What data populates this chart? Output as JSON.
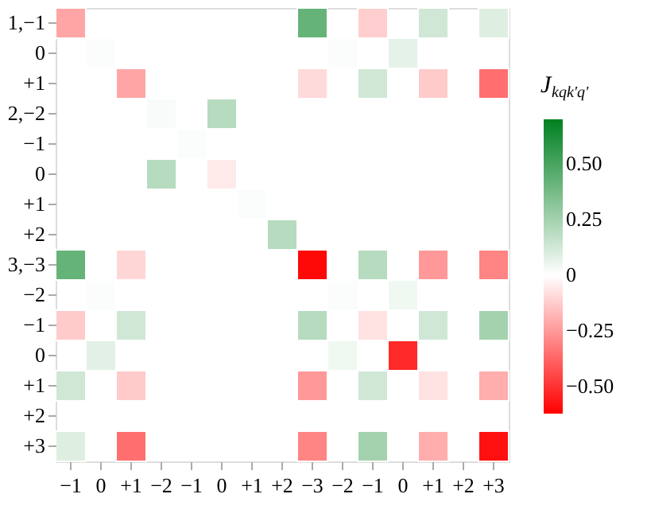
{
  "chart_data": {
    "type": "heatmap",
    "categories": [
      "−1",
      "0",
      "+1",
      "−2",
      "−1",
      "0",
      "+1",
      "+2",
      "−3",
      "−2",
      "−1",
      "0",
      "+1",
      "+2",
      "+3"
    ],
    "y_categories": [
      "1,−1",
      "0",
      "+1",
      "2,−2",
      "−1",
      "0",
      "+1",
      "+2",
      "3,−3",
      "−2",
      "−1",
      "0",
      "+1",
      "+2",
      "+3"
    ],
    "cells": [
      [
        -0.22,
        null,
        null,
        null,
        null,
        null,
        null,
        null,
        0.42,
        null,
        -0.12,
        null,
        0.13,
        null,
        0.09
      ],
      [
        null,
        0.01,
        null,
        null,
        null,
        null,
        null,
        null,
        null,
        0.01,
        null,
        0.07,
        null,
        null,
        null
      ],
      [
        null,
        null,
        -0.22,
        null,
        null,
        null,
        null,
        null,
        -0.09,
        null,
        0.13,
        null,
        -0.13,
        null,
        -0.35
      ],
      [
        null,
        null,
        null,
        0.02,
        null,
        0.2,
        null,
        null,
        null,
        null,
        null,
        null,
        null,
        null,
        null
      ],
      [
        null,
        null,
        null,
        null,
        0.01,
        null,
        null,
        null,
        null,
        null,
        null,
        null,
        null,
        null,
        null
      ],
      [
        null,
        null,
        null,
        0.2,
        null,
        -0.05,
        null,
        null,
        null,
        null,
        null,
        null,
        null,
        null,
        null
      ],
      [
        null,
        null,
        null,
        null,
        null,
        null,
        0.01,
        null,
        null,
        null,
        null,
        null,
        null,
        null,
        null
      ],
      [
        null,
        null,
        null,
        null,
        null,
        null,
        null,
        0.2,
        null,
        null,
        null,
        null,
        null,
        null,
        null
      ],
      [
        0.42,
        null,
        -0.1,
        null,
        null,
        null,
        null,
        null,
        -0.6,
        null,
        0.2,
        null,
        -0.25,
        null,
        -0.3
      ],
      [
        null,
        0.01,
        null,
        null,
        null,
        null,
        null,
        null,
        null,
        0.01,
        null,
        0.04,
        null,
        null,
        null
      ],
      [
        -0.13,
        null,
        0.13,
        null,
        null,
        null,
        null,
        null,
        0.2,
        null,
        -0.07,
        null,
        0.13,
        null,
        0.25
      ],
      [
        null,
        0.08,
        null,
        null,
        null,
        null,
        null,
        null,
        null,
        0.04,
        null,
        -0.52,
        null,
        null,
        null
      ],
      [
        0.13,
        null,
        -0.13,
        null,
        null,
        null,
        null,
        null,
        -0.25,
        null,
        0.13,
        null,
        -0.07,
        null,
        -0.2
      ],
      [
        null,
        null,
        null,
        null,
        null,
        null,
        null,
        null,
        null,
        null,
        null,
        null,
        null,
        null,
        null
      ],
      [
        0.09,
        null,
        -0.35,
        null,
        null,
        null,
        null,
        null,
        -0.3,
        null,
        0.25,
        null,
        -0.2,
        null,
        -0.58
      ]
    ],
    "clabel": "J$_{kqk'q'}$",
    "clim": [
      -0.62,
      0.7
    ],
    "cticks": [
      {
        "value": 0.5,
        "label": "0.50"
      },
      {
        "value": 0.25,
        "label": "0.25"
      },
      0,
      {
        "value": -0.25,
        "label": "−0.25"
      },
      {
        "value": -0.5,
        "label": "−0.50"
      }
    ],
    "colors": [
      "#ff0000",
      "#ffffff",
      "#008020"
    ]
  }
}
